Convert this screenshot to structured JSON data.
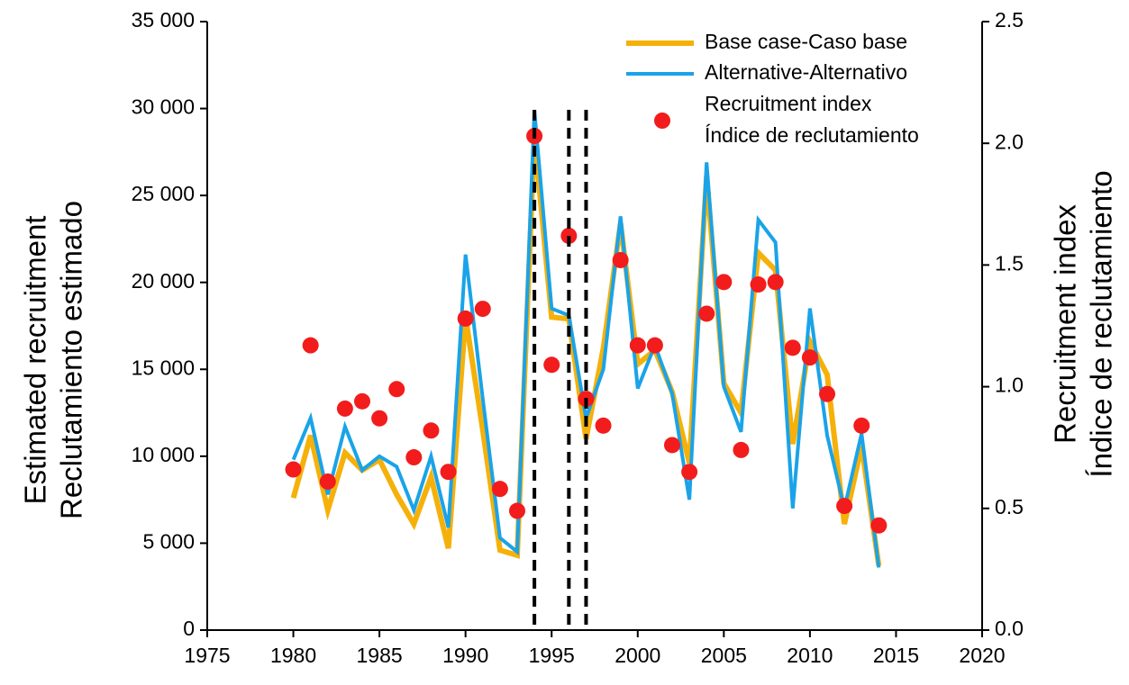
{
  "chart_data": {
    "type": "line",
    "y_label": [
      "Estimated recruitment",
      "Reclutamiento estimado"
    ],
    "y2_label": [
      "Recruitment index",
      "Índice de reclutamiento"
    ],
    "x": [
      1980,
      1981,
      1982,
      1983,
      1984,
      1985,
      1986,
      1987,
      1988,
      1989,
      1990,
      1991,
      1992,
      1993,
      1994,
      1995,
      1996,
      1997,
      1998,
      1999,
      2000,
      2001,
      2002,
      2003,
      2004,
      2005,
      2006,
      2007,
      2008,
      2009,
      2010,
      2011,
      2012,
      2013,
      2014
    ],
    "series": [
      {
        "name": "Base case-Caso base",
        "color": "#f5b10a",
        "values": [
          7600,
          11200,
          6900,
          10200,
          9200,
          9800,
          7800,
          6100,
          8800,
          4700,
          18000,
          11500,
          4600,
          4300,
          28400,
          18000,
          17900,
          11000,
          16200,
          23400,
          15300,
          16100,
          13700,
          9600,
          26100,
          14200,
          12500,
          21700,
          20700,
          10700,
          16600,
          14700,
          6100,
          10600,
          3700
        ]
      },
      {
        "name": "Alternative-Alternativo",
        "color": "#1aa3e8",
        "values": [
          9800,
          12200,
          7800,
          11700,
          9200,
          10000,
          9400,
          6900,
          10000,
          5900,
          21600,
          13300,
          5300,
          4500,
          29900,
          18500,
          18100,
          12200,
          15000,
          23800,
          13900,
          16400,
          13600,
          7500,
          26900,
          14000,
          11400,
          23600,
          22300,
          7000,
          18500,
          11200,
          7000,
          11300,
          3600
        ]
      },
      {
        "name": [
          "Recruitment index",
          "Índice de reclutamiento"
        ],
        "color": "#f21c1c",
        "axis": "y2",
        "marker": "dot",
        "values": [
          0.66,
          1.17,
          0.61,
          0.91,
          0.94,
          0.87,
          0.99,
          0.71,
          0.82,
          0.65,
          1.28,
          1.32,
          0.58,
          0.49,
          2.03,
          1.09,
          1.62,
          0.95,
          0.84,
          1.52,
          1.17,
          1.17,
          0.76,
          0.65,
          1.3,
          1.43,
          0.74,
          1.42,
          1.43,
          1.16,
          1.12,
          0.97,
          0.51,
          0.84,
          0.43
        ]
      }
    ],
    "vlines": [
      1994,
      1996,
      1997
    ],
    "xlim": [
      1975,
      2020
    ],
    "xticks": [
      1975,
      1980,
      1985,
      1990,
      1995,
      2000,
      2005,
      2010,
      2015,
      2020
    ],
    "ylim": [
      0,
      35000
    ],
    "yticks": [
      0,
      {
        "value": 5000,
        "label": "5 000"
      },
      {
        "value": 10000,
        "label": "10 000"
      },
      {
        "value": 15000,
        "label": "15 000"
      },
      {
        "value": 20000,
        "label": "20 000"
      },
      {
        "value": 25000,
        "label": "25 000"
      },
      {
        "value": 30000,
        "label": "30 000"
      },
      {
        "value": 35000,
        "label": "35 000"
      }
    ],
    "y2lim": [
      0,
      2.5
    ],
    "y2ticks": [
      {
        "value": 0,
        "label": "0.0"
      },
      0.5,
      {
        "value": 1,
        "label": "1.0"
      },
      1.5,
      {
        "value": 2,
        "label": "2.0"
      },
      2.5
    ],
    "grid": false
  }
}
